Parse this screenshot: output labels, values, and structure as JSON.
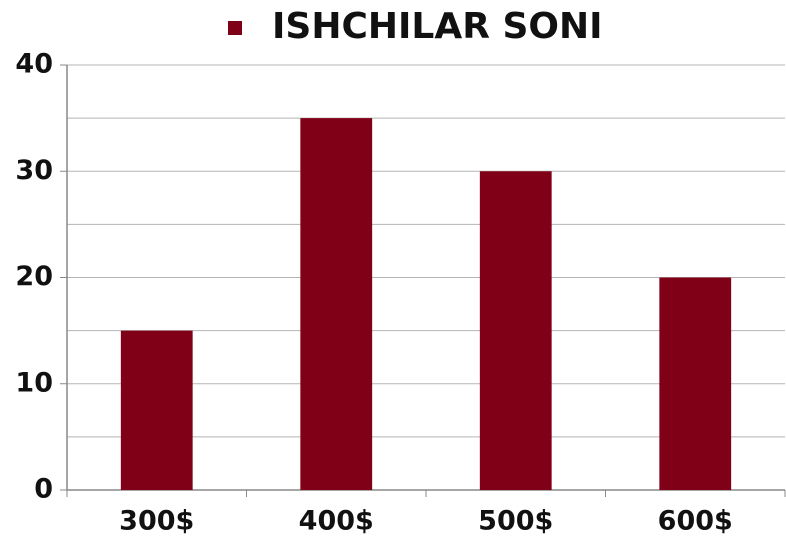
{
  "chart_data": {
    "type": "bar",
    "series": [
      {
        "name": "ISHCHILAR SONI",
        "color": "#800018",
        "values": [
          15,
          35,
          30,
          20
        ]
      }
    ],
    "categories": [
      "300$",
      "400$",
      "500$",
      "600$"
    ],
    "ylim": [
      0,
      40
    ],
    "yticks": [
      0,
      10,
      20,
      30,
      40
    ],
    "minor_yticks": [
      5,
      15,
      25,
      35
    ],
    "grid": true,
    "legend": "top"
  }
}
